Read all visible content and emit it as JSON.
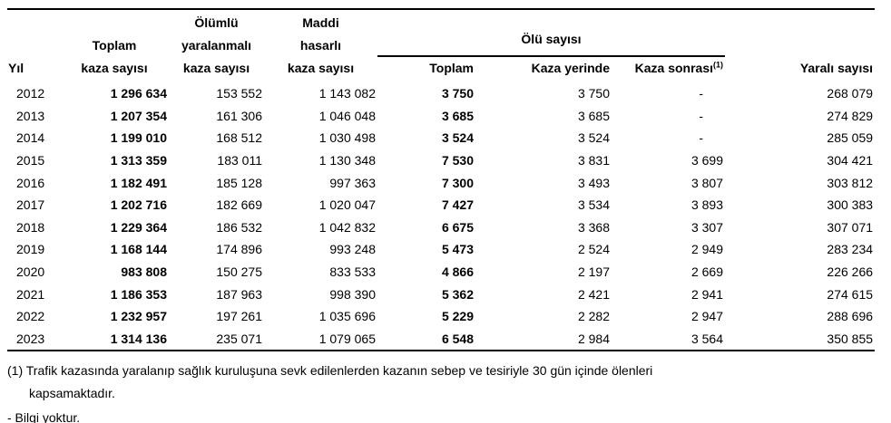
{
  "header": {
    "col_yil": "Yıl",
    "col_toplam_kaza": "Toplam\nkaza sayısı",
    "col_olumlu": "Ölümlü\nyaralanmalı\nkaza sayısı",
    "col_maddi": "Maddi\nhasarlı\nkaza sayısı",
    "group_olu": "Ölü sayısı",
    "col_olu_toplam": "Toplam",
    "col_kaza_yerinde": "Kaza yerinde",
    "col_kaza_sonrasi": "Kaza sonrası",
    "col_kaza_sonrasi_sup": "(1)",
    "col_yarali": "Yaralı sayısı"
  },
  "rows": [
    {
      "yil": "2012",
      "toplam_kaza": "1 296 634",
      "olumlu": "153 552",
      "maddi": "1 143 082",
      "olu_toplam": "3 750",
      "kaza_yerinde": "3 750",
      "kaza_sonrasi": "-",
      "yarali": "268 079"
    },
    {
      "yil": "2013",
      "toplam_kaza": "1 207 354",
      "olumlu": "161 306",
      "maddi": "1 046 048",
      "olu_toplam": "3 685",
      "kaza_yerinde": "3 685",
      "kaza_sonrasi": "-",
      "yarali": "274 829"
    },
    {
      "yil": "2014",
      "toplam_kaza": "1 199 010",
      "olumlu": "168 512",
      "maddi": "1 030 498",
      "olu_toplam": "3 524",
      "kaza_yerinde": "3 524",
      "kaza_sonrasi": "-",
      "yarali": "285 059"
    },
    {
      "yil": "2015",
      "toplam_kaza": "1 313 359",
      "olumlu": "183 011",
      "maddi": "1 130 348",
      "olu_toplam": "7 530",
      "kaza_yerinde": "3 831",
      "kaza_sonrasi": "3 699",
      "yarali": "304 421"
    },
    {
      "yil": "2016",
      "toplam_kaza": "1 182 491",
      "olumlu": "185 128",
      "maddi": "997 363",
      "olu_toplam": "7 300",
      "kaza_yerinde": "3 493",
      "kaza_sonrasi": "3 807",
      "yarali": "303 812"
    },
    {
      "yil": "2017",
      "toplam_kaza": "1 202 716",
      "olumlu": "182 669",
      "maddi": "1 020 047",
      "olu_toplam": "7 427",
      "kaza_yerinde": "3 534",
      "kaza_sonrasi": "3 893",
      "yarali": "300 383"
    },
    {
      "yil": "2018",
      "toplam_kaza": "1 229 364",
      "olumlu": "186 532",
      "maddi": "1 042 832",
      "olu_toplam": "6 675",
      "kaza_yerinde": "3 368",
      "kaza_sonrasi": "3 307",
      "yarali": "307 071"
    },
    {
      "yil": "2019",
      "toplam_kaza": "1 168 144",
      "olumlu": "174 896",
      "maddi": "993 248",
      "olu_toplam": "5 473",
      "kaza_yerinde": "2 524",
      "kaza_sonrasi": "2 949",
      "yarali": "283 234"
    },
    {
      "yil": "2020",
      "toplam_kaza": "983 808",
      "olumlu": "150 275",
      "maddi": "833 533",
      "olu_toplam": "4 866",
      "kaza_yerinde": "2 197",
      "kaza_sonrasi": "2 669",
      "yarali": "226 266"
    },
    {
      "yil": "2021",
      "toplam_kaza": "1 186 353",
      "olumlu": "187 963",
      "maddi": "998 390",
      "olu_toplam": "5 362",
      "kaza_yerinde": "2 421",
      "kaza_sonrasi": "2 941",
      "yarali": "274 615"
    },
    {
      "yil": "2022",
      "toplam_kaza": "1 232 957",
      "olumlu": "197 261",
      "maddi": "1 035 696",
      "olu_toplam": "5 229",
      "kaza_yerinde": "2 282",
      "kaza_sonrasi": "2 947",
      "yarali": "288 696"
    },
    {
      "yil": "2023",
      "toplam_kaza": "1 314 136",
      "olumlu": "235 071",
      "maddi": "1 079 065",
      "olu_toplam": "6 548",
      "kaza_yerinde": "2 984",
      "kaza_sonrasi": "3 564",
      "yarali": "350 855"
    }
  ],
  "footnotes": {
    "note1_line1": "(1) Trafik kazasında yaralanıp sağlık kuruluşuna sevk edilenlerden kazanın sebep ve tesiriyle 30 gün içinde ölenleri",
    "note1_line2": "kapsamaktadır.",
    "note2": "- Bilgi yoktur."
  }
}
